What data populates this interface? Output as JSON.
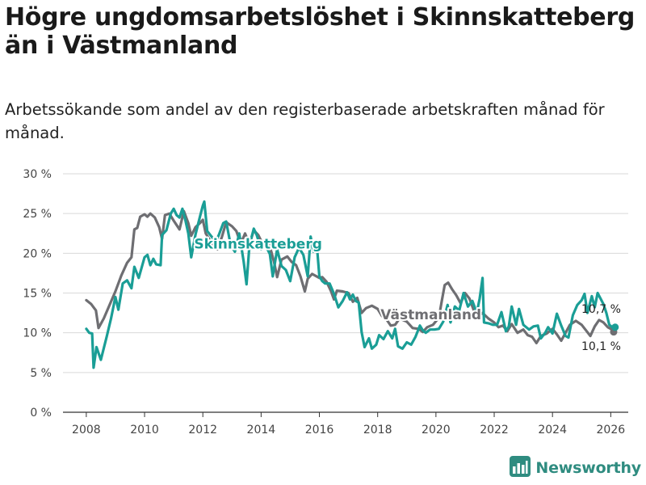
{
  "title": "Högre ungdomsarbetslöshet i Skinnskatteberg än i Västmanland",
  "subtitle": "Arbetssökande som andel av den registerbaserade arbetskraften månad för månad.",
  "brand": "Newsworthy",
  "colors": {
    "skinnskatteberg": "#1a9e96",
    "vastmanland": "#6e6e72",
    "grid": "#d9d9d9",
    "brand": "#2f8c80"
  },
  "chart_data": {
    "type": "line",
    "title": "Högre ungdomsarbetslöshet i Skinnskatteberg än i Västmanland",
    "xlabel": "",
    "ylabel": "",
    "xlim": [
      2007.2,
      2026.6
    ],
    "ylim": [
      0,
      30
    ],
    "yticks": [
      0,
      5,
      10,
      15,
      20,
      25,
      30
    ],
    "ytick_labels": [
      "0 %",
      "5 %",
      "10 %",
      "15 %",
      "20 %",
      "25 %",
      "30 %"
    ],
    "xticks": [
      2008,
      2010,
      2012,
      2014,
      2016,
      2018,
      2020,
      2022,
      2024,
      2026
    ],
    "xtick_labels": [
      "2008",
      "2010",
      "2012",
      "2014",
      "2016",
      "2018",
      "2020",
      "2022",
      "2024",
      "2026"
    ],
    "grid": true,
    "series": [
      {
        "name": "Västmanland",
        "label": "Västmanland",
        "end_label": "10,1 %",
        "color": "#6e6e72",
        "points": [
          [
            2008.0,
            14.1
          ],
          [
            2008.17,
            13.6
          ],
          [
            2008.33,
            12.8
          ],
          [
            2008.42,
            10.6
          ],
          [
            2008.6,
            11.8
          ],
          [
            2008.8,
            13.5
          ],
          [
            2009.0,
            15.2
          ],
          [
            2009.2,
            17.2
          ],
          [
            2009.4,
            18.8
          ],
          [
            2009.55,
            19.5
          ],
          [
            2009.65,
            23.0
          ],
          [
            2009.75,
            23.2
          ],
          [
            2009.85,
            24.6
          ],
          [
            2010.0,
            24.9
          ],
          [
            2010.1,
            24.6
          ],
          [
            2010.2,
            25.0
          ],
          [
            2010.35,
            24.5
          ],
          [
            2010.5,
            23.3
          ],
          [
            2010.6,
            21.8
          ],
          [
            2010.7,
            24.8
          ],
          [
            2010.85,
            25.0
          ],
          [
            2011.0,
            24.1
          ],
          [
            2011.2,
            23.0
          ],
          [
            2011.35,
            25.3
          ],
          [
            2011.5,
            23.8
          ],
          [
            2011.6,
            22.2
          ],
          [
            2011.75,
            23.3
          ],
          [
            2011.9,
            23.8
          ],
          [
            2012.0,
            24.2
          ],
          [
            2012.1,
            22.5
          ],
          [
            2012.25,
            21.6
          ],
          [
            2012.4,
            20.9
          ],
          [
            2012.5,
            20.5
          ],
          [
            2012.65,
            22.0
          ],
          [
            2012.8,
            23.9
          ],
          [
            2013.0,
            23.4
          ],
          [
            2013.15,
            22.8
          ],
          [
            2013.3,
            21.2
          ],
          [
            2013.45,
            22.5
          ],
          [
            2013.6,
            21.1
          ],
          [
            2013.75,
            22.9
          ],
          [
            2013.9,
            22.3
          ],
          [
            2014.05,
            21.2
          ],
          [
            2014.2,
            21.8
          ],
          [
            2014.35,
            20.2
          ],
          [
            2014.45,
            18.8
          ],
          [
            2014.55,
            17.0
          ],
          [
            2014.7,
            19.2
          ],
          [
            2014.9,
            19.6
          ],
          [
            2015.05,
            18.9
          ],
          [
            2015.2,
            18.5
          ],
          [
            2015.35,
            17.1
          ],
          [
            2015.5,
            15.2
          ],
          [
            2015.6,
            16.8
          ],
          [
            2015.75,
            17.4
          ],
          [
            2016.0,
            16.9
          ],
          [
            2016.1,
            17.0
          ],
          [
            2016.25,
            16.4
          ],
          [
            2016.4,
            15.2
          ],
          [
            2016.5,
            14.2
          ],
          [
            2016.6,
            15.3
          ],
          [
            2016.8,
            15.2
          ],
          [
            2017.0,
            15.0
          ],
          [
            2017.15,
            13.9
          ],
          [
            2017.3,
            14.4
          ],
          [
            2017.45,
            12.5
          ],
          [
            2017.6,
            13.1
          ],
          [
            2017.8,
            13.4
          ],
          [
            2018.0,
            13.0
          ],
          [
            2018.15,
            12.1
          ],
          [
            2018.3,
            11.7
          ],
          [
            2018.45,
            10.9
          ],
          [
            2018.6,
            11.0
          ],
          [
            2018.75,
            11.8
          ],
          [
            2019.0,
            11.4
          ],
          [
            2019.2,
            10.6
          ],
          [
            2019.4,
            10.5
          ],
          [
            2019.55,
            10.1
          ],
          [
            2019.7,
            10.7
          ],
          [
            2019.9,
            11.0
          ],
          [
            2020.1,
            11.9
          ],
          [
            2020.2,
            14.0
          ],
          [
            2020.3,
            16.0
          ],
          [
            2020.42,
            16.3
          ],
          [
            2020.55,
            15.5
          ],
          [
            2020.7,
            14.7
          ],
          [
            2020.85,
            13.7
          ],
          [
            2021.0,
            15.0
          ],
          [
            2021.15,
            14.3
          ],
          [
            2021.3,
            12.8
          ],
          [
            2021.45,
            12.0
          ],
          [
            2021.6,
            12.5
          ],
          [
            2021.8,
            11.8
          ],
          [
            2022.0,
            11.3
          ],
          [
            2022.15,
            10.7
          ],
          [
            2022.3,
            10.9
          ],
          [
            2022.45,
            10.2
          ],
          [
            2022.6,
            11.1
          ],
          [
            2022.8,
            10.0
          ],
          [
            2023.0,
            10.4
          ],
          [
            2023.15,
            9.7
          ],
          [
            2023.3,
            9.5
          ],
          [
            2023.45,
            8.7
          ],
          [
            2023.6,
            9.6
          ],
          [
            2023.8,
            9.9
          ],
          [
            2024.0,
            10.5
          ],
          [
            2024.15,
            9.8
          ],
          [
            2024.3,
            9.0
          ],
          [
            2024.45,
            10.0
          ],
          [
            2024.6,
            11.0
          ],
          [
            2024.8,
            11.5
          ],
          [
            2025.0,
            11.0
          ],
          [
            2025.15,
            10.3
          ],
          [
            2025.3,
            9.6
          ],
          [
            2025.45,
            10.8
          ],
          [
            2025.6,
            11.6
          ],
          [
            2025.75,
            11.3
          ],
          [
            2025.9,
            10.7
          ],
          [
            2026.0,
            10.5
          ],
          [
            2026.1,
            10.1
          ]
        ]
      },
      {
        "name": "Skinnskatteberg",
        "label": "Skinnskatteberg",
        "end_label": "10,7 %",
        "color": "#1a9e96",
        "points": [
          [
            2008.0,
            10.5
          ],
          [
            2008.1,
            10.0
          ],
          [
            2008.2,
            9.9
          ],
          [
            2008.25,
            5.6
          ],
          [
            2008.35,
            8.2
          ],
          [
            2008.5,
            6.6
          ],
          [
            2008.7,
            9.5
          ],
          [
            2008.85,
            11.8
          ],
          [
            2009.0,
            14.5
          ],
          [
            2009.1,
            12.9
          ],
          [
            2009.25,
            16.2
          ],
          [
            2009.4,
            16.6
          ],
          [
            2009.55,
            15.6
          ],
          [
            2009.65,
            18.3
          ],
          [
            2009.8,
            16.9
          ],
          [
            2010.0,
            19.5
          ],
          [
            2010.1,
            19.8
          ],
          [
            2010.2,
            18.5
          ],
          [
            2010.3,
            19.3
          ],
          [
            2010.4,
            18.6
          ],
          [
            2010.55,
            18.5
          ],
          [
            2010.6,
            22.3
          ],
          [
            2010.75,
            22.9
          ],
          [
            2010.9,
            25.0
          ],
          [
            2011.0,
            25.6
          ],
          [
            2011.1,
            24.8
          ],
          [
            2011.2,
            24.5
          ],
          [
            2011.3,
            25.6
          ],
          [
            2011.4,
            24.2
          ],
          [
            2011.5,
            22.5
          ],
          [
            2011.6,
            19.5
          ],
          [
            2011.75,
            22.4
          ],
          [
            2011.9,
            24.6
          ],
          [
            2012.0,
            26.0
          ],
          [
            2012.05,
            26.5
          ],
          [
            2012.15,
            22.8
          ],
          [
            2012.3,
            22.1
          ],
          [
            2012.45,
            21.5
          ],
          [
            2012.55,
            22.3
          ],
          [
            2012.7,
            23.8
          ],
          [
            2012.8,
            24.0
          ],
          [
            2012.95,
            21.1
          ],
          [
            2013.1,
            20.2
          ],
          [
            2013.25,
            22.5
          ],
          [
            2013.4,
            19.0
          ],
          [
            2013.5,
            16.1
          ],
          [
            2013.6,
            21.0
          ],
          [
            2013.75,
            23.1
          ],
          [
            2013.85,
            22.3
          ],
          [
            2014.0,
            20.5
          ],
          [
            2014.15,
            21.0
          ],
          [
            2014.3,
            19.9
          ],
          [
            2014.4,
            17.1
          ],
          [
            2014.55,
            20.5
          ],
          [
            2014.7,
            18.4
          ],
          [
            2014.85,
            17.9
          ],
          [
            2015.0,
            16.5
          ],
          [
            2015.15,
            19.5
          ],
          [
            2015.3,
            20.7
          ],
          [
            2015.45,
            19.8
          ],
          [
            2015.6,
            17.1
          ],
          [
            2015.7,
            22.1
          ],
          [
            2015.8,
            20.2
          ],
          [
            2015.9,
            21.6
          ],
          [
            2016.0,
            17.1
          ],
          [
            2016.1,
            16.5
          ],
          [
            2016.2,
            16.2
          ],
          [
            2016.35,
            16.2
          ],
          [
            2016.5,
            14.9
          ],
          [
            2016.65,
            13.2
          ],
          [
            2016.8,
            14.0
          ],
          [
            2016.95,
            15.1
          ],
          [
            2017.05,
            14.2
          ],
          [
            2017.15,
            14.8
          ],
          [
            2017.25,
            14.0
          ],
          [
            2017.35,
            13.8
          ],
          [
            2017.45,
            10.1
          ],
          [
            2017.55,
            8.2
          ],
          [
            2017.7,
            9.3
          ],
          [
            2017.8,
            8.0
          ],
          [
            2017.95,
            8.5
          ],
          [
            2018.05,
            9.7
          ],
          [
            2018.2,
            9.2
          ],
          [
            2018.35,
            10.2
          ],
          [
            2018.5,
            9.3
          ],
          [
            2018.6,
            10.5
          ],
          [
            2018.7,
            8.3
          ],
          [
            2018.85,
            8.0
          ],
          [
            2019.0,
            8.8
          ],
          [
            2019.15,
            8.5
          ],
          [
            2019.3,
            9.5
          ],
          [
            2019.45,
            10.9
          ],
          [
            2019.55,
            10.3
          ],
          [
            2019.65,
            10.0
          ],
          [
            2019.8,
            10.4
          ],
          [
            2019.95,
            10.4
          ],
          [
            2020.1,
            10.5
          ],
          [
            2020.25,
            11.4
          ],
          [
            2020.4,
            13.5
          ],
          [
            2020.5,
            11.3
          ],
          [
            2020.65,
            13.3
          ],
          [
            2020.8,
            12.8
          ],
          [
            2020.95,
            15.0
          ],
          [
            2021.1,
            13.3
          ],
          [
            2021.25,
            14.0
          ],
          [
            2021.4,
            12.5
          ],
          [
            2021.5,
            14.3
          ],
          [
            2021.6,
            16.9
          ],
          [
            2021.65,
            11.3
          ],
          [
            2021.8,
            11.2
          ],
          [
            2021.95,
            11.0
          ],
          [
            2022.1,
            11.0
          ],
          [
            2022.25,
            12.6
          ],
          [
            2022.4,
            10.2
          ],
          [
            2022.5,
            10.8
          ],
          [
            2022.6,
            13.3
          ],
          [
            2022.75,
            11.0
          ],
          [
            2022.85,
            13.0
          ],
          [
            2023.0,
            11.0
          ],
          [
            2023.1,
            10.7
          ],
          [
            2023.2,
            10.4
          ],
          [
            2023.35,
            10.8
          ],
          [
            2023.5,
            10.9
          ],
          [
            2023.6,
            9.3
          ],
          [
            2023.75,
            10.0
          ],
          [
            2023.85,
            10.7
          ],
          [
            2024.0,
            9.9
          ],
          [
            2024.15,
            12.4
          ],
          [
            2024.3,
            10.9
          ],
          [
            2024.45,
            9.6
          ],
          [
            2024.55,
            9.4
          ],
          [
            2024.7,
            12.2
          ],
          [
            2024.85,
            13.5
          ],
          [
            2025.0,
            14.1
          ],
          [
            2025.1,
            14.9
          ],
          [
            2025.2,
            12.5
          ],
          [
            2025.35,
            14.6
          ],
          [
            2025.45,
            13.2
          ],
          [
            2025.55,
            15.0
          ],
          [
            2025.65,
            14.3
          ],
          [
            2025.75,
            13.6
          ],
          [
            2025.85,
            12.5
          ],
          [
            2025.95,
            11.0
          ],
          [
            2026.05,
            10.7
          ],
          [
            2026.15,
            10.7
          ]
        ]
      }
    ]
  }
}
